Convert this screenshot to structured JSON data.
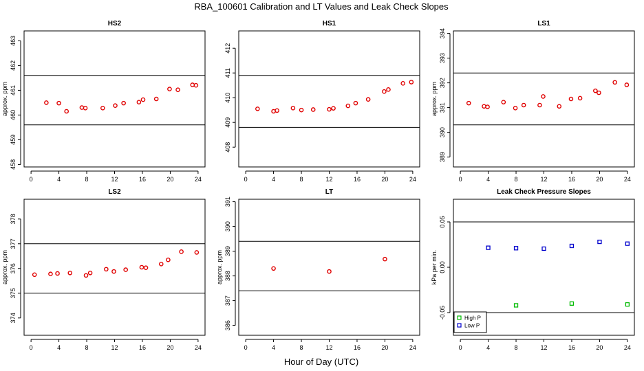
{
  "figure": {
    "title": "RBA_100601  Calibration and LT Values and Leak Check Slopes",
    "xlabel": "Hour of Day (UTC)"
  },
  "colors": {
    "red": "#e00000",
    "green": "#00bb00",
    "blue": "#0000cc",
    "axis": "#000000"
  },
  "chart_data": [
    {
      "type": "scatter",
      "title": "HS2",
      "ylabel": "approx. ppm",
      "xlim": [
        -1,
        25
      ],
      "ylim": [
        457.9,
        463.4
      ],
      "xticks": [
        0,
        4,
        8,
        12,
        16,
        20,
        24
      ],
      "xtick_labels": [
        "0",
        "4",
        "8",
        "12",
        "16",
        "20",
        "24"
      ],
      "yticks": [
        458,
        459,
        460,
        461,
        462,
        463
      ],
      "ytick_labels": [
        "458",
        "459",
        "460",
        "461",
        "462",
        "463"
      ],
      "hlines": [
        461.6,
        459.6
      ],
      "series": [
        {
          "name": "HS2",
          "color": "red",
          "x": [
            2.2,
            4.0,
            5.1,
            7.3,
            7.8,
            10.3,
            12.1,
            13.3,
            15.5,
            16.1,
            18.0,
            19.9,
            21.1,
            23.2,
            23.7
          ],
          "y": [
            460.5,
            460.48,
            460.15,
            460.3,
            460.28,
            460.28,
            460.38,
            460.48,
            460.52,
            460.62,
            460.65,
            461.05,
            461.02,
            461.22,
            461.2
          ]
        }
      ]
    },
    {
      "type": "scatter",
      "title": "HS1",
      "ylabel": "",
      "xlim": [
        -1,
        25
      ],
      "ylim": [
        407.2,
        412.7
      ],
      "xticks": [
        0,
        4,
        8,
        12,
        16,
        20,
        24
      ],
      "xtick_labels": [
        "0",
        "4",
        "8",
        "12",
        "16",
        "20",
        "24"
      ],
      "yticks": [
        408,
        409,
        410,
        411,
        412
      ],
      "ytick_labels": [
        "408",
        "409",
        "410",
        "411",
        "412"
      ],
      "hlines": [
        410.9,
        408.8
      ],
      "series": [
        {
          "name": "HS1",
          "color": "red",
          "x": [
            1.7,
            4.0,
            4.5,
            6.8,
            8.0,
            9.7,
            12.0,
            12.6,
            14.7,
            15.8,
            17.6,
            19.9,
            20.5,
            22.6,
            23.8
          ],
          "y": [
            409.55,
            409.45,
            409.48,
            409.58,
            409.5,
            409.52,
            409.53,
            409.57,
            409.67,
            409.78,
            409.93,
            410.25,
            410.33,
            410.58,
            410.63
          ]
        }
      ]
    },
    {
      "type": "scatter",
      "title": "LS1",
      "ylabel": "approx. ppm",
      "xlim": [
        -1,
        25
      ],
      "ylim": [
        388.6,
        394.1
      ],
      "xticks": [
        0,
        4,
        8,
        12,
        16,
        20,
        24
      ],
      "xtick_labels": [
        "0",
        "4",
        "8",
        "12",
        "16",
        "20",
        "24"
      ],
      "yticks": [
        389,
        390,
        391,
        392,
        393,
        394
      ],
      "ytick_labels": [
        "389",
        "390",
        "391",
        "392",
        "393",
        "394"
      ],
      "hlines": [
        392.4,
        390.3
      ],
      "series": [
        {
          "name": "LS1",
          "color": "red",
          "x": [
            1.2,
            3.4,
            3.9,
            6.2,
            7.9,
            9.1,
            11.4,
            11.9,
            14.2,
            15.9,
            17.2,
            19.4,
            19.9,
            22.2,
            23.9
          ],
          "y": [
            391.18,
            391.05,
            391.03,
            391.22,
            390.98,
            391.1,
            391.1,
            391.45,
            391.05,
            391.35,
            391.38,
            391.68,
            391.6,
            392.02,
            391.92
          ]
        }
      ]
    },
    {
      "type": "scatter",
      "title": "LS2",
      "ylabel": "approx. ppm",
      "xlim": [
        -1,
        25
      ],
      "ylim": [
        373.3,
        378.8
      ],
      "xticks": [
        0,
        4,
        8,
        12,
        16,
        20,
        24
      ],
      "xtick_labels": [
        "0",
        "4",
        "8",
        "12",
        "16",
        "20",
        "24"
      ],
      "yticks": [
        374,
        375,
        376,
        377,
        378
      ],
      "ytick_labels": [
        "374",
        "375",
        "376",
        "377",
        "378"
      ],
      "hlines": [
        377.0,
        375.0
      ],
      "series": [
        {
          "name": "LS2",
          "color": "red",
          "x": [
            0.5,
            2.8,
            3.8,
            5.6,
            7.9,
            8.5,
            10.8,
            11.9,
            13.6,
            15.9,
            16.5,
            18.7,
            19.7,
            21.6,
            23.8
          ],
          "y": [
            375.75,
            375.78,
            375.8,
            375.82,
            375.72,
            375.82,
            375.97,
            375.88,
            375.95,
            376.05,
            376.03,
            376.18,
            376.35,
            376.68,
            376.65
          ]
        }
      ]
    },
    {
      "type": "scatter",
      "title": "LT",
      "ylabel": "approx. ppm",
      "xlim": [
        -1,
        25
      ],
      "ylim": [
        385.6,
        391.1
      ],
      "xticks": [
        0,
        4,
        8,
        12,
        16,
        20,
        24
      ],
      "xtick_labels": [
        "0",
        "4",
        "8",
        "12",
        "16",
        "20",
        "24"
      ],
      "yticks": [
        386,
        387,
        388,
        389,
        390,
        391
      ],
      "ytick_labels": [
        "386",
        "387",
        "388",
        "389",
        "390",
        "391"
      ],
      "hlines": [
        389.4,
        387.4
      ],
      "series": [
        {
          "name": "LT",
          "color": "red",
          "x": [
            4.0,
            12.0,
            20.0
          ],
          "y": [
            388.3,
            388.18,
            388.68
          ]
        }
      ]
    },
    {
      "type": "scatter",
      "title": "Leak Check Pressure Slopes",
      "ylabel": "kPa per min.",
      "xlim": [
        -1,
        25
      ],
      "ylim": [
        -0.075,
        0.075
      ],
      "xticks": [
        0,
        4,
        8,
        12,
        16,
        20,
        24
      ],
      "xtick_labels": [
        "0",
        "4",
        "8",
        "12",
        "16",
        "20",
        "24"
      ],
      "yticks": [
        -0.05,
        0.0,
        0.05
      ],
      "ytick_labels": [
        "-0.05",
        "0.00",
        "0.05"
      ],
      "hlines": [
        0.05,
        -0.05
      ],
      "legend": {
        "position": "bottom-left",
        "entries": [
          {
            "label": "High P",
            "color": "green"
          },
          {
            "label": "Low P",
            "color": "blue"
          }
        ]
      },
      "series": [
        {
          "name": "High P",
          "color": "green",
          "marker": "square",
          "x": [
            8,
            16,
            24
          ],
          "y": [
            -0.042,
            -0.04,
            -0.041
          ]
        },
        {
          "name": "Low P",
          "color": "blue",
          "marker": "square",
          "x": [
            4,
            8,
            12,
            16,
            20,
            24
          ],
          "y": [
            0.0215,
            0.021,
            0.0205,
            0.0235,
            0.028,
            0.026
          ]
        }
      ]
    }
  ]
}
